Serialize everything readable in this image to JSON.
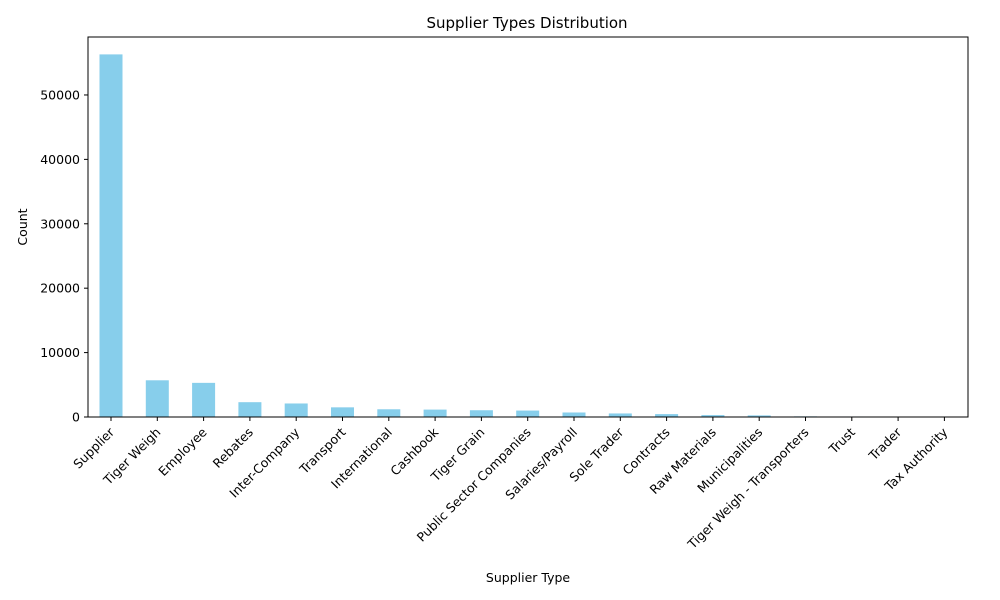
{
  "chart_data": {
    "type": "bar",
    "title": "Supplier Types Distribution",
    "xlabel": "Supplier Type",
    "ylabel": "Count",
    "categories": [
      "Supplier",
      "Tiger Weigh",
      "Employee",
      "Rebates",
      "Inter-Company",
      "Transport",
      "International",
      "Cashbook",
      "Tiger Grain",
      "Public Sector Companies",
      "Salaries/Payroll",
      "Sole Trader",
      "Contracts",
      "Raw Materials",
      "Municipalities",
      "Tiger Weigh - Transporters",
      "Trust",
      "Trader",
      "Tax Authority"
    ],
    "values": [
      56300,
      5700,
      5300,
      2300,
      2100,
      1500,
      1200,
      1150,
      1050,
      1000,
      700,
      550,
      450,
      300,
      250,
      100,
      80,
      60,
      40
    ],
    "ylim": [
      0,
      59000
    ],
    "yticks": [
      0,
      10000,
      20000,
      30000,
      40000,
      50000
    ],
    "bar_color": "#87ceeb",
    "grid": false,
    "legend": "none"
  }
}
